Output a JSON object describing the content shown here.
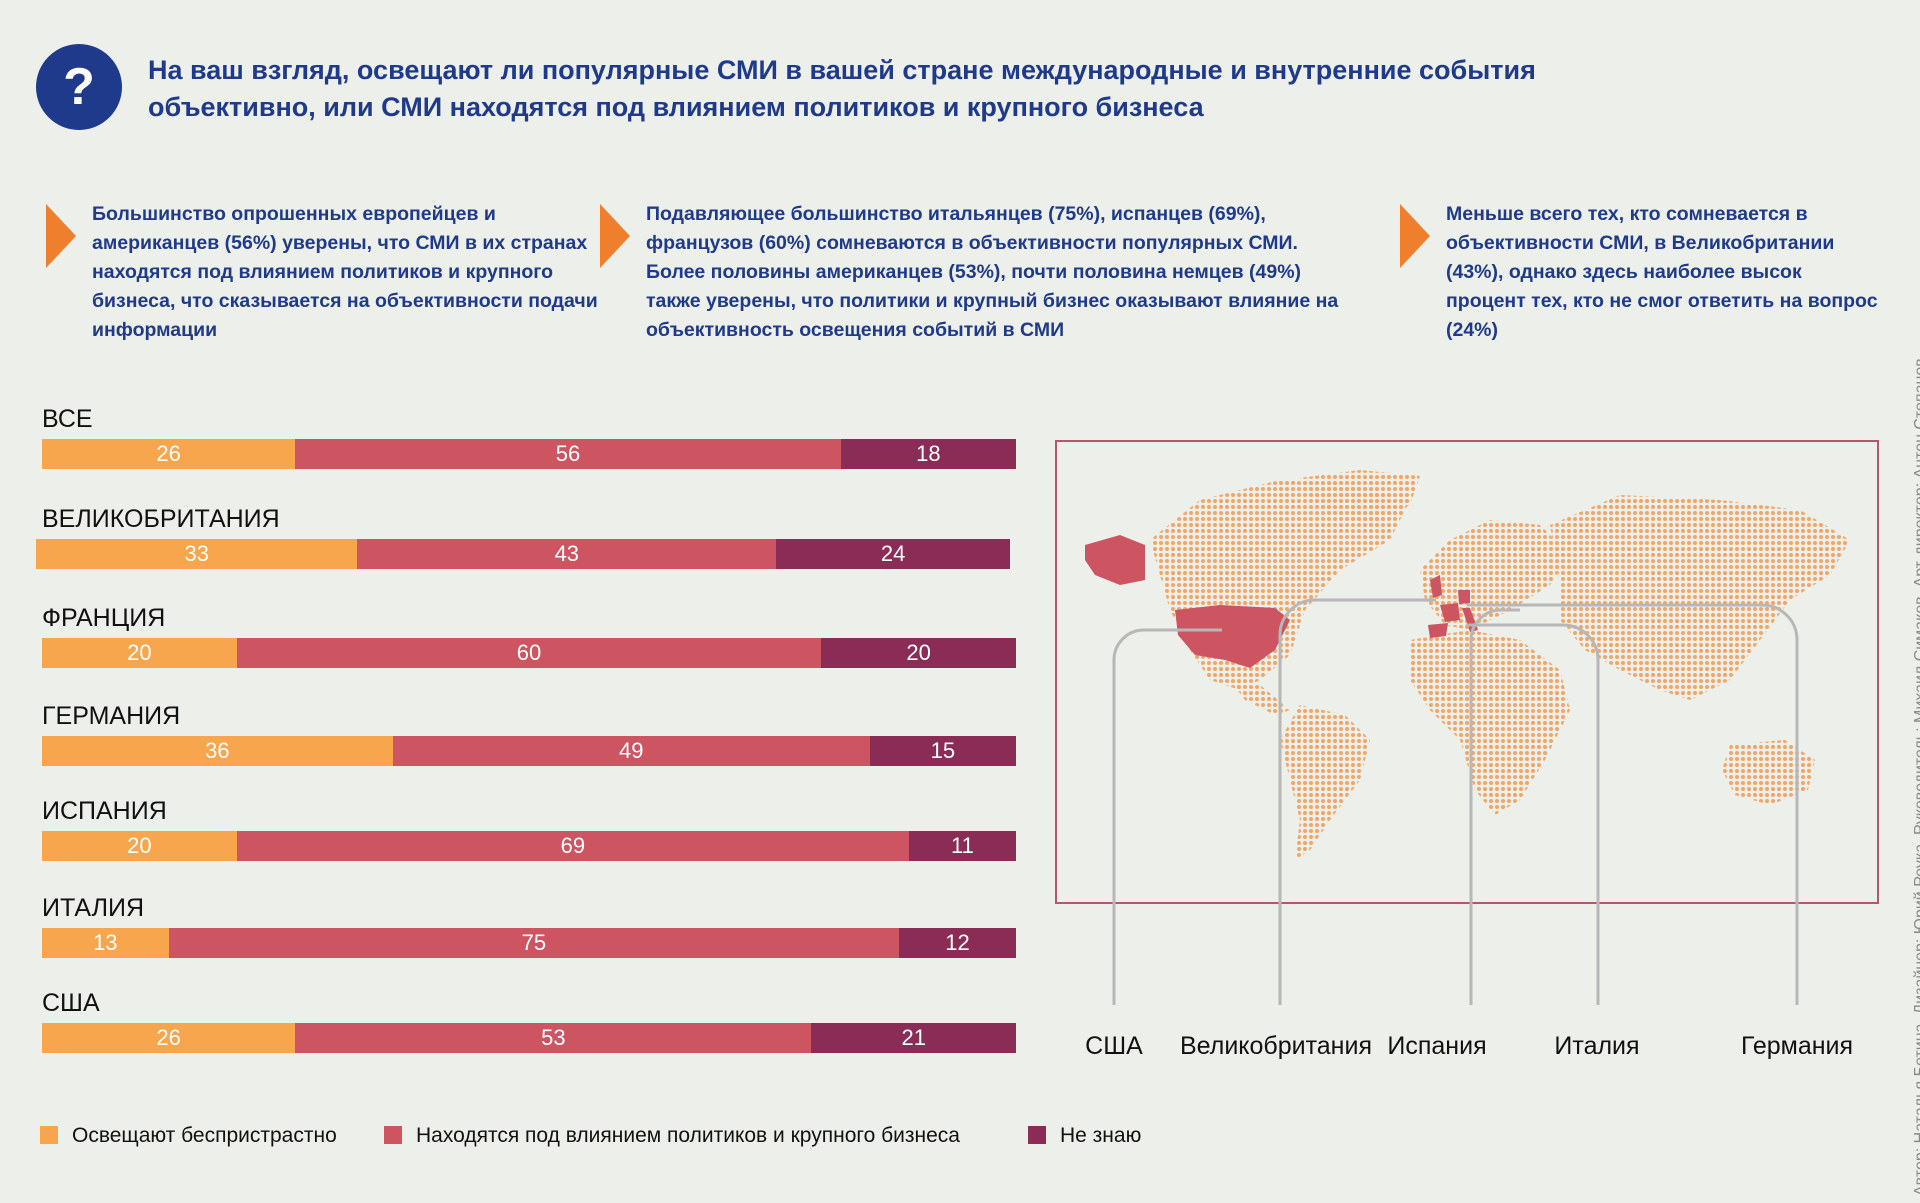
{
  "question_icon": "?",
  "title": "На ваш взгляд, освещают ли популярные СМИ в вашей стране международные и внутренние события объективно, или СМИ находятся под влиянием политиков и крупного бизнеса",
  "notes": [
    "Большинство опрошенных европейцев и американцев (56%) уверены, что СМИ в их странах находятся под влиянием политиков и крупного бизнеса, что сказывается на объективности подачи информации",
    "Подавляющее большинство итальянцев (75%), испанцев (69%), французов (60%) сомневаются в объективности популярных СМИ. Более половины американцев (53%), почти половина немцев (49%) также уверены, что политики и крупный бизнес оказывают влияние на объективность освещения событий в СМИ",
    "Меньше всего тех, кто сомневается в объективности СМИ, в Великобритании (43%), однако здесь наиболее высок процент тех, кто не смог ответить на вопрос (24%)"
  ],
  "chart_data": {
    "type": "bar",
    "stacked": true,
    "orientation": "horizontal",
    "categories": [
      "ВСЕ",
      "ВЕЛИКОБРИТАНИЯ",
      "ФРАНЦИЯ",
      "ГЕРМАНИЯ",
      "ИСПАНИЯ",
      "ИТАЛИЯ",
      "США"
    ],
    "series": [
      {
        "name": "Освещают беспристрастно",
        "color": "#f7a64d",
        "values": [
          26,
          33,
          20,
          36,
          20,
          13,
          26
        ]
      },
      {
        "name": "Находятся под влиянием политиков и крупного бизнеса",
        "color": "#cd5461",
        "values": [
          56,
          43,
          60,
          49,
          69,
          75,
          53
        ]
      },
      {
        "name": "Не знаю",
        "color": "#8a2c55",
        "values": [
          18,
          24,
          20,
          15,
          11,
          12,
          21
        ]
      }
    ],
    "legend": "bottom-left"
  },
  "map": {
    "land_color": "#f4a565",
    "highlight_color": "#cd5461",
    "labels": [
      "США",
      "Великобритания",
      "Испания",
      "Италия",
      "Германия"
    ]
  },
  "credits": "Автор: Наталья Бетина. Дизайнер: Юрий Реука. Руководитель: Михаил Симаков. Арт-директор: Антон Степанов"
}
